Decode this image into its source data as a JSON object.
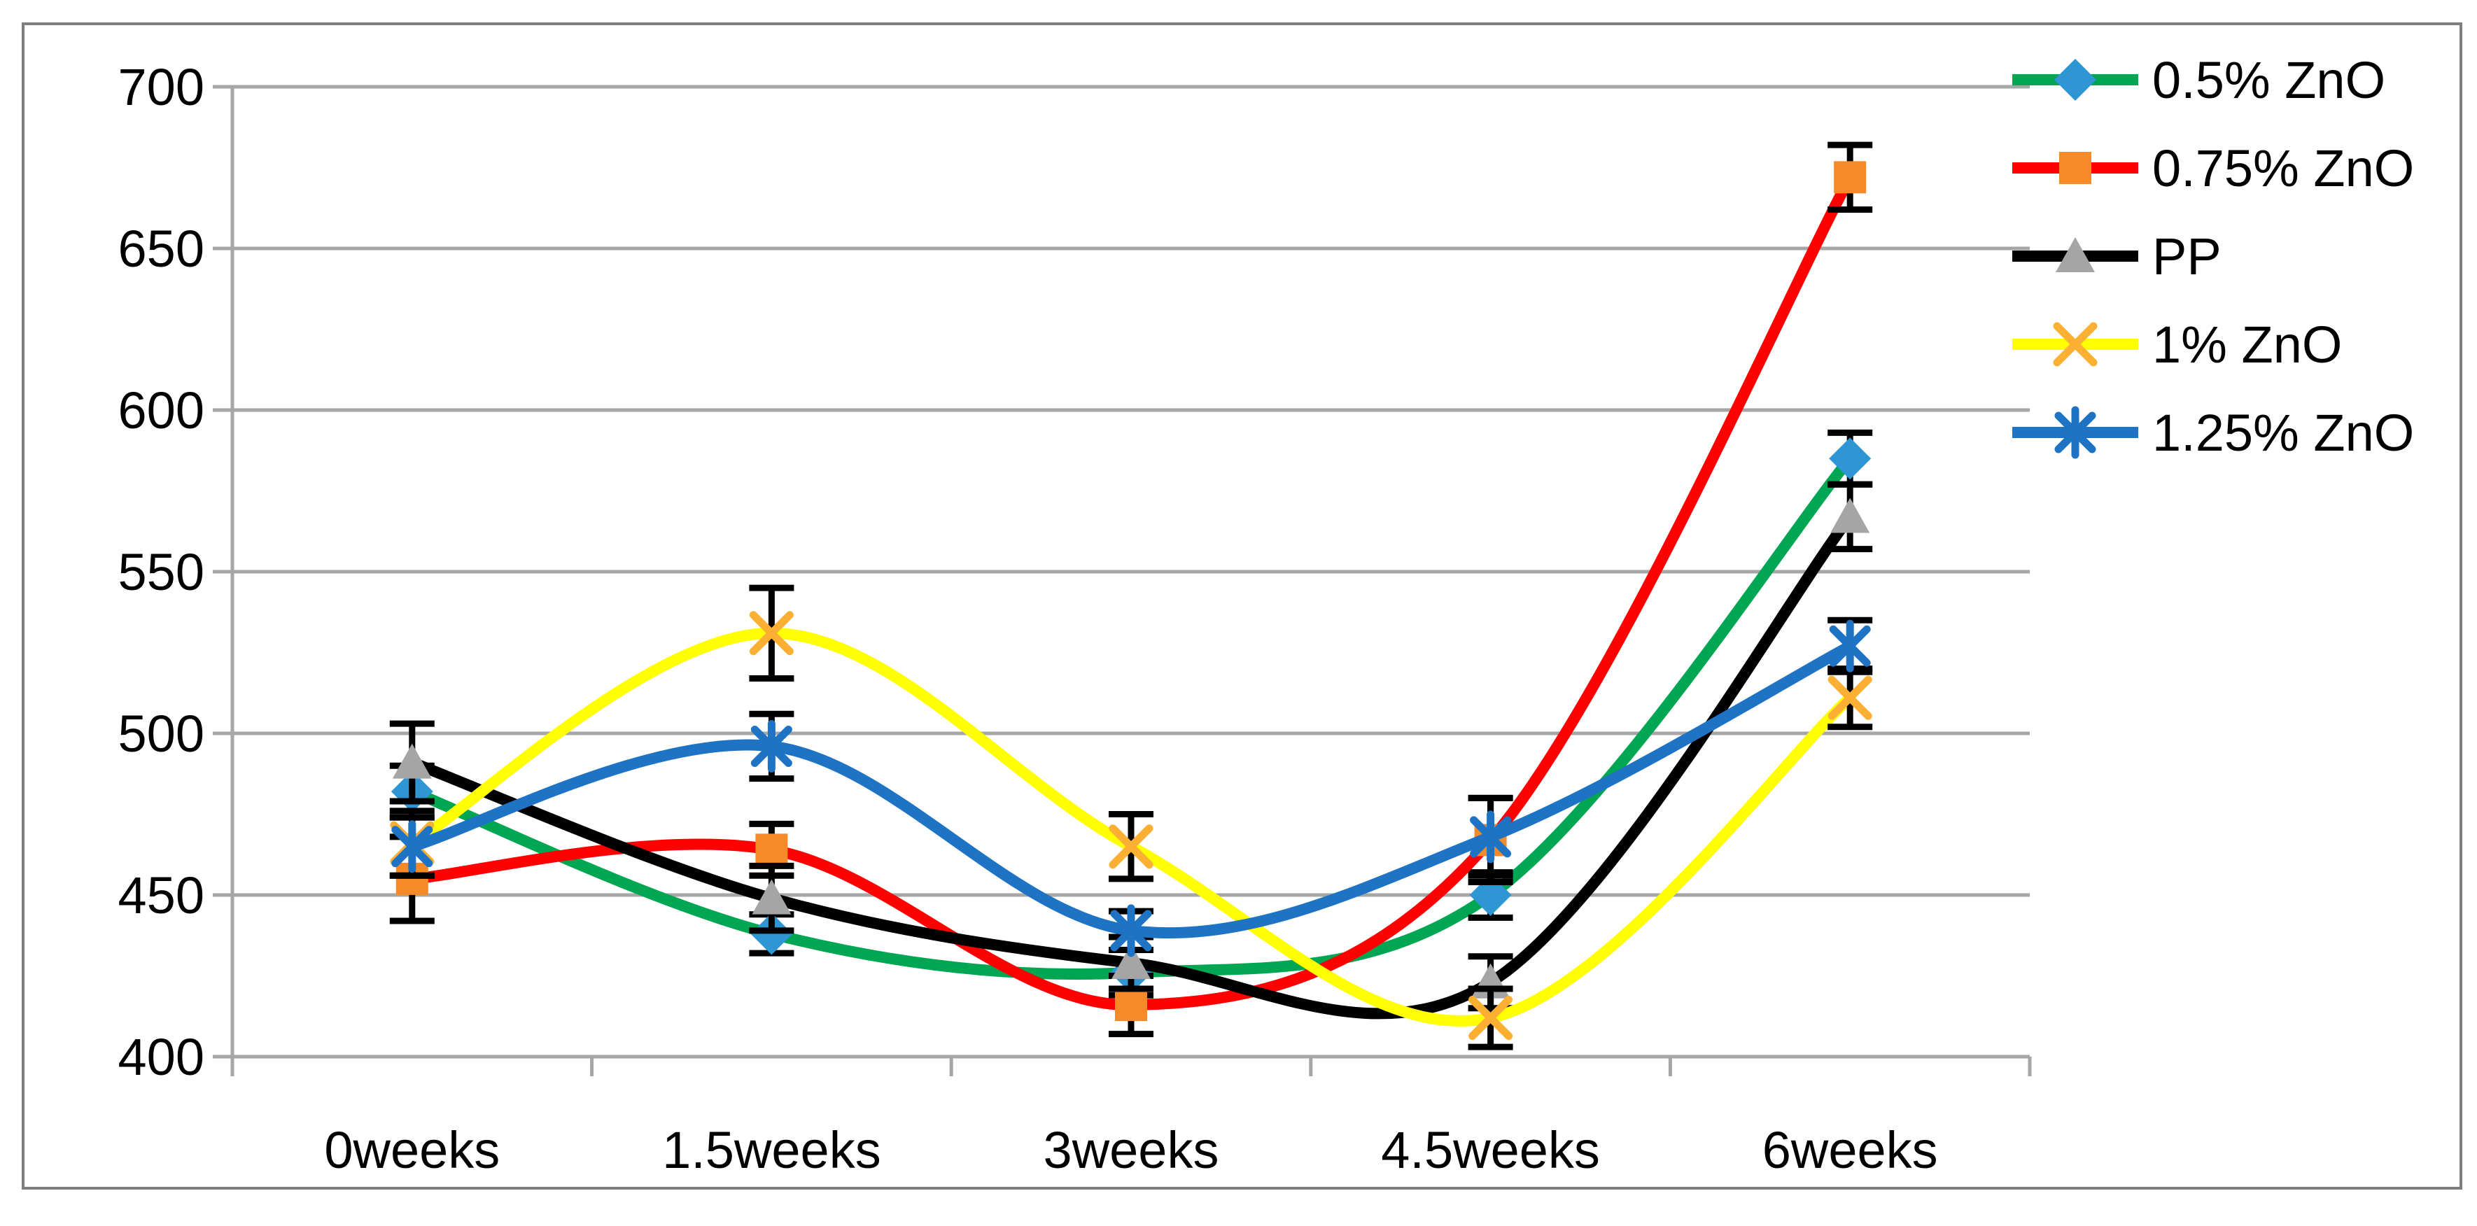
{
  "chart_data": {
    "type": "line",
    "title": "",
    "subtitle": "",
    "xlabel": "",
    "ylabel": "",
    "categories": [
      "0weeks",
      "1.5weeks",
      "3weeks",
      "4.5weeks",
      "6weeks"
    ],
    "ylim": [
      400,
      700
    ],
    "ytick_step": 50,
    "ytick_labels": [
      "400",
      "450",
      "500",
      "550",
      "600",
      "650",
      "700"
    ],
    "grid": true,
    "line_shape": "smooth",
    "error_bars": true,
    "legend_position": "right",
    "series": [
      {
        "name": "0.5% ZnO",
        "line_color": "#00A651",
        "marker": "diamond",
        "marker_color": "#2E96D3",
        "values": [
          482,
          438,
          426,
          450,
          585
        ],
        "errors": [
          8,
          6,
          7,
          7,
          8
        ]
      },
      {
        "name": "0.75% ZnO",
        "line_color": "#FF0000",
        "marker": "square",
        "marker_color": "#F68928",
        "values": [
          455,
          464,
          416,
          467,
          672
        ],
        "errors": [
          13,
          8,
          9,
          13,
          10
        ]
      },
      {
        "name": "PP",
        "line_color": "#000000",
        "marker": "triangle",
        "marker_color": "#A5A5A5",
        "values": [
          491,
          449,
          429,
          423,
          567
        ],
        "errors": [
          12,
          10,
          8,
          8,
          10
        ]
      },
      {
        "name": "1% ZnO",
        "line_color": "#FFFF00",
        "marker": "x",
        "marker_color": "#FBB034",
        "values": [
          466,
          531,
          465,
          412,
          511
        ],
        "errors": [
          10,
          14,
          10,
          9,
          9
        ]
      },
      {
        "name": "1.25% ZnO",
        "line_color": "#1E73C4",
        "marker": "asterisk",
        "marker_color": "#1E73C4",
        "values": [
          465,
          496,
          439,
          468,
          527
        ],
        "errors": [
          9,
          10,
          6,
          12,
          8
        ]
      }
    ],
    "colors": {
      "gridline": "#A6A6A6",
      "axis": "#A6A6A6",
      "error_bar": "#000000",
      "tick_label": "#000000",
      "legend_text": "#000000",
      "background": "#FFFFFF",
      "border": "#7F7F7F"
    }
  }
}
